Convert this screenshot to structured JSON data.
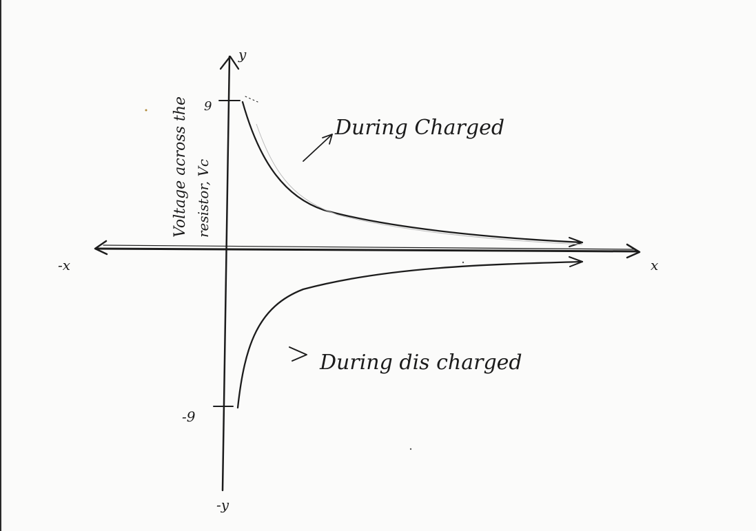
{
  "diagram": {
    "y_axis_label_line1": "Voltage across the",
    "y_axis_label_line2": "resistor, Vc",
    "y_axis_top_label": "y",
    "y_axis_bottom_label": "-y",
    "x_axis_right_label": "x",
    "x_axis_left_label": "-x",
    "tick_top_label": "9",
    "tick_bottom_label": "-9",
    "charge_label": "During Charged",
    "discharge_label": "During dis charged"
  }
}
